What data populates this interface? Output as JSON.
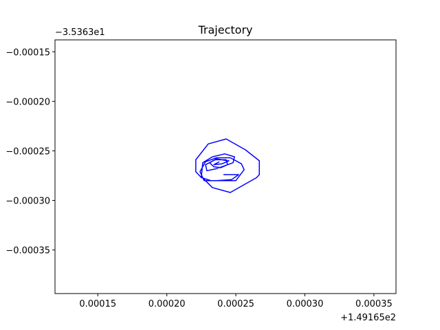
{
  "chart_data": {
    "type": "line",
    "title": "Trajectory",
    "xlabel": "",
    "ylabel": "",
    "x_offset_label": "+1.49165e2",
    "y_offset_label": "−3.5363e1",
    "xlim": [
      0.000119,
      0.000366
    ],
    "ylim": [
      -0.000394,
      -0.000138
    ],
    "x_ticks": [
      0.00015,
      0.0002,
      0.00025,
      0.0003,
      0.00035
    ],
    "x_tick_labels": [
      "0.00015",
      "0.00020",
      "0.00025",
      "0.00030",
      "0.00035"
    ],
    "y_ticks": [
      -0.00015,
      -0.0002,
      -0.00025,
      -0.0003,
      -0.00035
    ],
    "y_tick_labels": [
      "−0.00015",
      "−0.00020",
      "−0.00025",
      "−0.00030",
      "−0.00035"
    ],
    "grid": false,
    "color": "#0000ff",
    "series": [
      {
        "x": [
          0.000241,
          0.000252,
          0.000247,
          0.000236,
          0.000227,
          0.000224,
          0.000228,
          0.000236,
          0.000246,
          0.000254,
          0.000256,
          0.00025,
          0.000242,
          0.000232,
          0.000225,
          0.000221,
          0.000221,
          0.00023,
          0.000243,
          0.000257,
          0.000267,
          0.000267,
          0.000265,
          0.000246,
          0.000233,
          0.000225,
          0.000226,
          0.000233,
          0.000242,
          0.000249,
          0.000248,
          0.000236,
          0.000229,
          0.000228,
          0.000235,
          0.000243,
          0.000244,
          0.000239,
          0.000234,
          0.000231,
          0.000236,
          0.000244,
          0.000245,
          0.00024,
          0.000234,
          0.000238
        ],
        "y": [
          -0.000274,
          -0.000274,
          -0.000279,
          -0.00028,
          -0.00028,
          -0.000271,
          -0.000261,
          -0.000257,
          -0.000257,
          -0.000263,
          -0.000269,
          -0.00028,
          -0.00028,
          -0.00028,
          -0.000277,
          -0.000271,
          -0.000259,
          -0.000243,
          -0.000238,
          -0.000249,
          -0.00026,
          -0.000274,
          -0.000277,
          -0.000292,
          -0.000287,
          -0.000276,
          -0.000262,
          -0.000256,
          -0.000253,
          -0.000256,
          -0.000262,
          -0.000268,
          -0.00027,
          -0.000264,
          -0.000259,
          -0.000259,
          -0.000264,
          -0.000267,
          -0.000266,
          -0.000262,
          -0.000258,
          -0.00026,
          -0.00026,
          -0.000263,
          -0.000264,
          -0.000261
        ]
      }
    ]
  }
}
